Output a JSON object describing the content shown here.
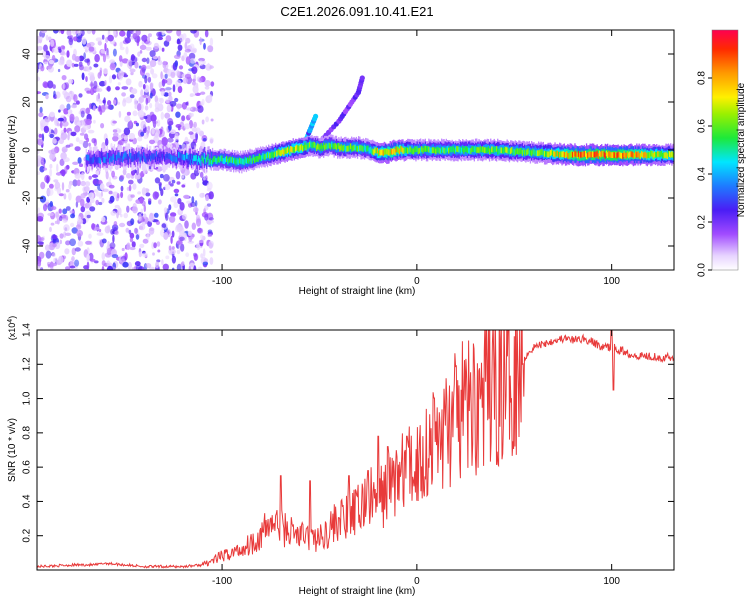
{
  "figure": {
    "title": "C2E1.2026.091.10.41.E21"
  },
  "chart_data": [
    {
      "type": "heatmap",
      "title": "C2E1.2026.091.10.41.E21",
      "xlabel": "Height of straight line (km)",
      "ylabel": "Frequency (Hz)",
      "xlim": [
        -195,
        132
      ],
      "ylim": [
        -50,
        50
      ],
      "xticks": [
        -100,
        0,
        100
      ],
      "xtick_labels": [
        "-100",
        "0",
        "100"
      ],
      "yticks": [
        -40,
        -20,
        0,
        20,
        40
      ],
      "ytick_labels": [
        "-40",
        "-20",
        "0",
        "20",
        "40"
      ],
      "colorbar": {
        "label": "Normalized spectral amplitude",
        "range": [
          0,
          1
        ],
        "ticks": [
          0.0,
          0.2,
          0.4,
          0.6,
          0.8
        ],
        "tick_labels": [
          "0.0",
          "0.2",
          "0.4",
          "0.6",
          "0.8"
        ],
        "colormap": "rainbow (white → violet → blue → cyan → green → yellow → orange → red)"
      },
      "ridge": {
        "description": "Dominant spectral ridge near 0 Hz",
        "x": [
          -170,
          -150,
          -130,
          -110,
          -100,
          -90,
          -80,
          -70,
          -60,
          -55,
          -50,
          -45,
          -40,
          -35,
          -30,
          -25,
          -20,
          -15,
          -10,
          -5,
          0,
          20,
          40,
          60,
          80,
          100,
          130
        ],
        "y": [
          -4,
          -3,
          -3,
          -4,
          -4,
          -5,
          -3,
          -1,
          1,
          2,
          1,
          2,
          1,
          1,
          1,
          0,
          -1,
          -1,
          0,
          0,
          0,
          0,
          0,
          -1,
          -2,
          -2,
          -2
        ],
        "amplitude": [
          0.35,
          0.35,
          0.3,
          0.5,
          0.55,
          0.55,
          0.55,
          0.7,
          0.75,
          0.6,
          0.6,
          0.55,
          0.6,
          0.6,
          0.6,
          0.55,
          0.75,
          0.8,
          0.8,
          0.65,
          0.6,
          0.6,
          0.65,
          0.6,
          0.85,
          0.9,
          0.7
        ]
      },
      "branches": [
        {
          "x": [
            -58,
            -55,
            -52
          ],
          "y": [
            2,
            8,
            14
          ],
          "amplitude": 0.35
        },
        {
          "x": [
            -48,
            -40,
            -35,
            -30,
            -28
          ],
          "y": [
            5,
            12,
            18,
            24,
            30
          ],
          "amplitude": 0.2
        }
      ],
      "scatter_region": {
        "x_range": [
          -195,
          -105
        ],
        "y_range": [
          -50,
          50
        ],
        "amplitude_range": [
          0.05,
          0.3
        ]
      }
    },
    {
      "type": "line",
      "xlabel": "Height of straight line (km)",
      "ylabel": "SNR (10 * v/v)",
      "y_multiplier": "(x10^4)",
      "xlim": [
        -195,
        132
      ],
      "ylim": [
        0,
        1.4
      ],
      "xticks": [
        -100,
        0,
        100
      ],
      "xtick_labels": [
        "-100",
        "0",
        "100"
      ],
      "yticks": [
        0.2,
        0.4,
        0.6,
        0.8,
        1.0,
        1.2,
        1.4
      ],
      "ytick_labels": [
        "0.2",
        "0.4",
        "0.6",
        "0.8",
        "1.0",
        "1.2",
        "1.4"
      ],
      "color": "#e83a3a",
      "series": [
        {
          "name": "SNR",
          "x": [
            -195,
            -175,
            -165,
            -160,
            -140,
            -120,
            -110,
            -100,
            -90,
            -80,
            -75,
            -70,
            -60,
            -50,
            -45,
            -40,
            -35,
            -30,
            -25,
            -20,
            -15,
            -10,
            -5,
            0,
            5,
            10,
            15,
            20,
            25,
            30,
            35,
            40,
            45,
            50,
            55,
            60,
            65,
            70,
            75,
            80,
            85,
            90,
            95,
            100,
            105,
            110,
            115,
            120,
            125,
            132
          ],
          "y": [
            0.02,
            0.03,
            0.03,
            0.04,
            0.02,
            0.02,
            0.03,
            0.08,
            0.12,
            0.2,
            0.28,
            0.25,
            0.2,
            0.18,
            0.24,
            0.3,
            0.3,
            0.35,
            0.42,
            0.4,
            0.48,
            0.55,
            0.58,
            0.62,
            0.7,
            0.78,
            0.82,
            0.88,
            0.94,
            0.98,
            1.02,
            1.06,
            1.1,
            1.2,
            1.24,
            1.3,
            1.32,
            1.34,
            1.35,
            1.34,
            1.35,
            1.33,
            1.3,
            1.3,
            1.28,
            1.26,
            1.25,
            1.25,
            1.24,
            1.24
          ]
        }
      ],
      "spikes": [
        {
          "x": -70,
          "y": 0.55
        },
        {
          "x": -55,
          "y": 0.52
        },
        {
          "x": -35,
          "y": 0.55
        },
        {
          "x": -25,
          "y": 0.58
        },
        {
          "x": -20,
          "y": 0.78
        },
        {
          "x": -15,
          "y": 0.72
        },
        {
          "x": -5,
          "y": 0.78
        },
        {
          "x": 100,
          "y": 1.42
        },
        {
          "x": 101,
          "y": 1.05
        }
      ]
    }
  ]
}
